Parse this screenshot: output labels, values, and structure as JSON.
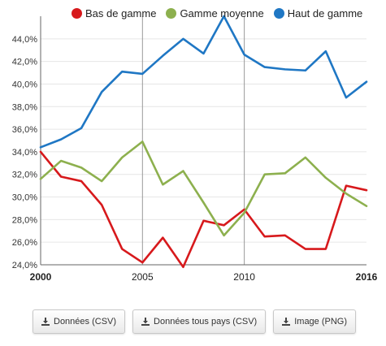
{
  "chart_data": {
    "type": "line",
    "x": [
      2000,
      2001,
      2002,
      2003,
      2004,
      2005,
      2006,
      2007,
      2008,
      2009,
      2010,
      2011,
      2012,
      2013,
      2014,
      2015,
      2016
    ],
    "series": [
      {
        "name": "Bas de gamme",
        "color": "#d7191c",
        "values": [
          34.0,
          31.8,
          31.4,
          29.3,
          25.4,
          24.2,
          26.4,
          23.8,
          27.9,
          27.5,
          28.9,
          26.5,
          26.6,
          25.4,
          25.4,
          31.0,
          30.6
        ]
      },
      {
        "name": "Gamme moyenne",
        "color": "#8db04e",
        "values": [
          31.6,
          33.2,
          32.6,
          31.4,
          33.5,
          34.9,
          31.1,
          32.3,
          29.5,
          26.6,
          28.6,
          32.0,
          32.1,
          33.5,
          31.7,
          30.3,
          29.2
        ]
      },
      {
        "name": "Haut de gamme",
        "color": "#1f77c4",
        "values": [
          34.4,
          35.1,
          36.1,
          39.3,
          41.1,
          40.9,
          42.5,
          44.0,
          42.7,
          46.0,
          42.6,
          41.5,
          41.3,
          41.2,
          42.9,
          38.8,
          40.2
        ]
      }
    ],
    "ylim": [
      24,
      46
    ],
    "yticks": [
      "24,0%",
      "26,0%",
      "28,0%",
      "30,0%",
      "32,0%",
      "34,0%",
      "36,0%",
      "38,0%",
      "40,0%",
      "42,0%",
      "44,0%"
    ],
    "xticks": [
      {
        "value": 2000,
        "label": "2000",
        "bold": true
      },
      {
        "value": 2005,
        "label": "2005",
        "bold": false
      },
      {
        "value": 2010,
        "label": "2010",
        "bold": false
      },
      {
        "value": 2016,
        "label": "2016",
        "bold": true
      }
    ],
    "xlim": [
      2000,
      2016
    ],
    "grid": true,
    "legend": "top"
  },
  "buttons": [
    {
      "label": "Données (CSV)"
    },
    {
      "label": "Données tous pays (CSV)"
    },
    {
      "label": "Image (PNG)"
    }
  ]
}
